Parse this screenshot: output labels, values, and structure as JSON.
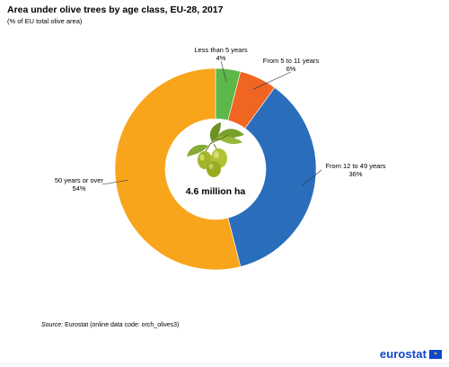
{
  "title": "Area under olive trees by age class, EU-28, 2017",
  "subtitle": "(% of EU total olive area)",
  "source_label": "Source:",
  "source_text": " Eurostat (online data code: orch_olives3)",
  "logo_text": "eurostat",
  "logo_flag_stars": "✶",
  "icon": "olive-branch-icon",
  "colors": {
    "less_than_5": "#5cb849",
    "5_to_11": "#f06522",
    "12_to_49": "#2a6ebb",
    "50_or_over": "#f8a51b",
    "leader": "#2d3648"
  },
  "chart_data": {
    "type": "pie",
    "style": "donut",
    "center_label": "4.6 million ha",
    "slices": [
      {
        "name": "Less than 5 years",
        "value": 4,
        "label": "4%",
        "color": "#5cb849"
      },
      {
        "name": "From 5 to 11 years",
        "value": 6,
        "label": "6%",
        "color": "#f06522"
      },
      {
        "name": "From 12 to 49 years",
        "value": 36,
        "label": "36%",
        "color": "#2a6ebb"
      },
      {
        "name": "50 years or over",
        "value": 54,
        "label": "54%",
        "color": "#f8a51b"
      }
    ]
  }
}
